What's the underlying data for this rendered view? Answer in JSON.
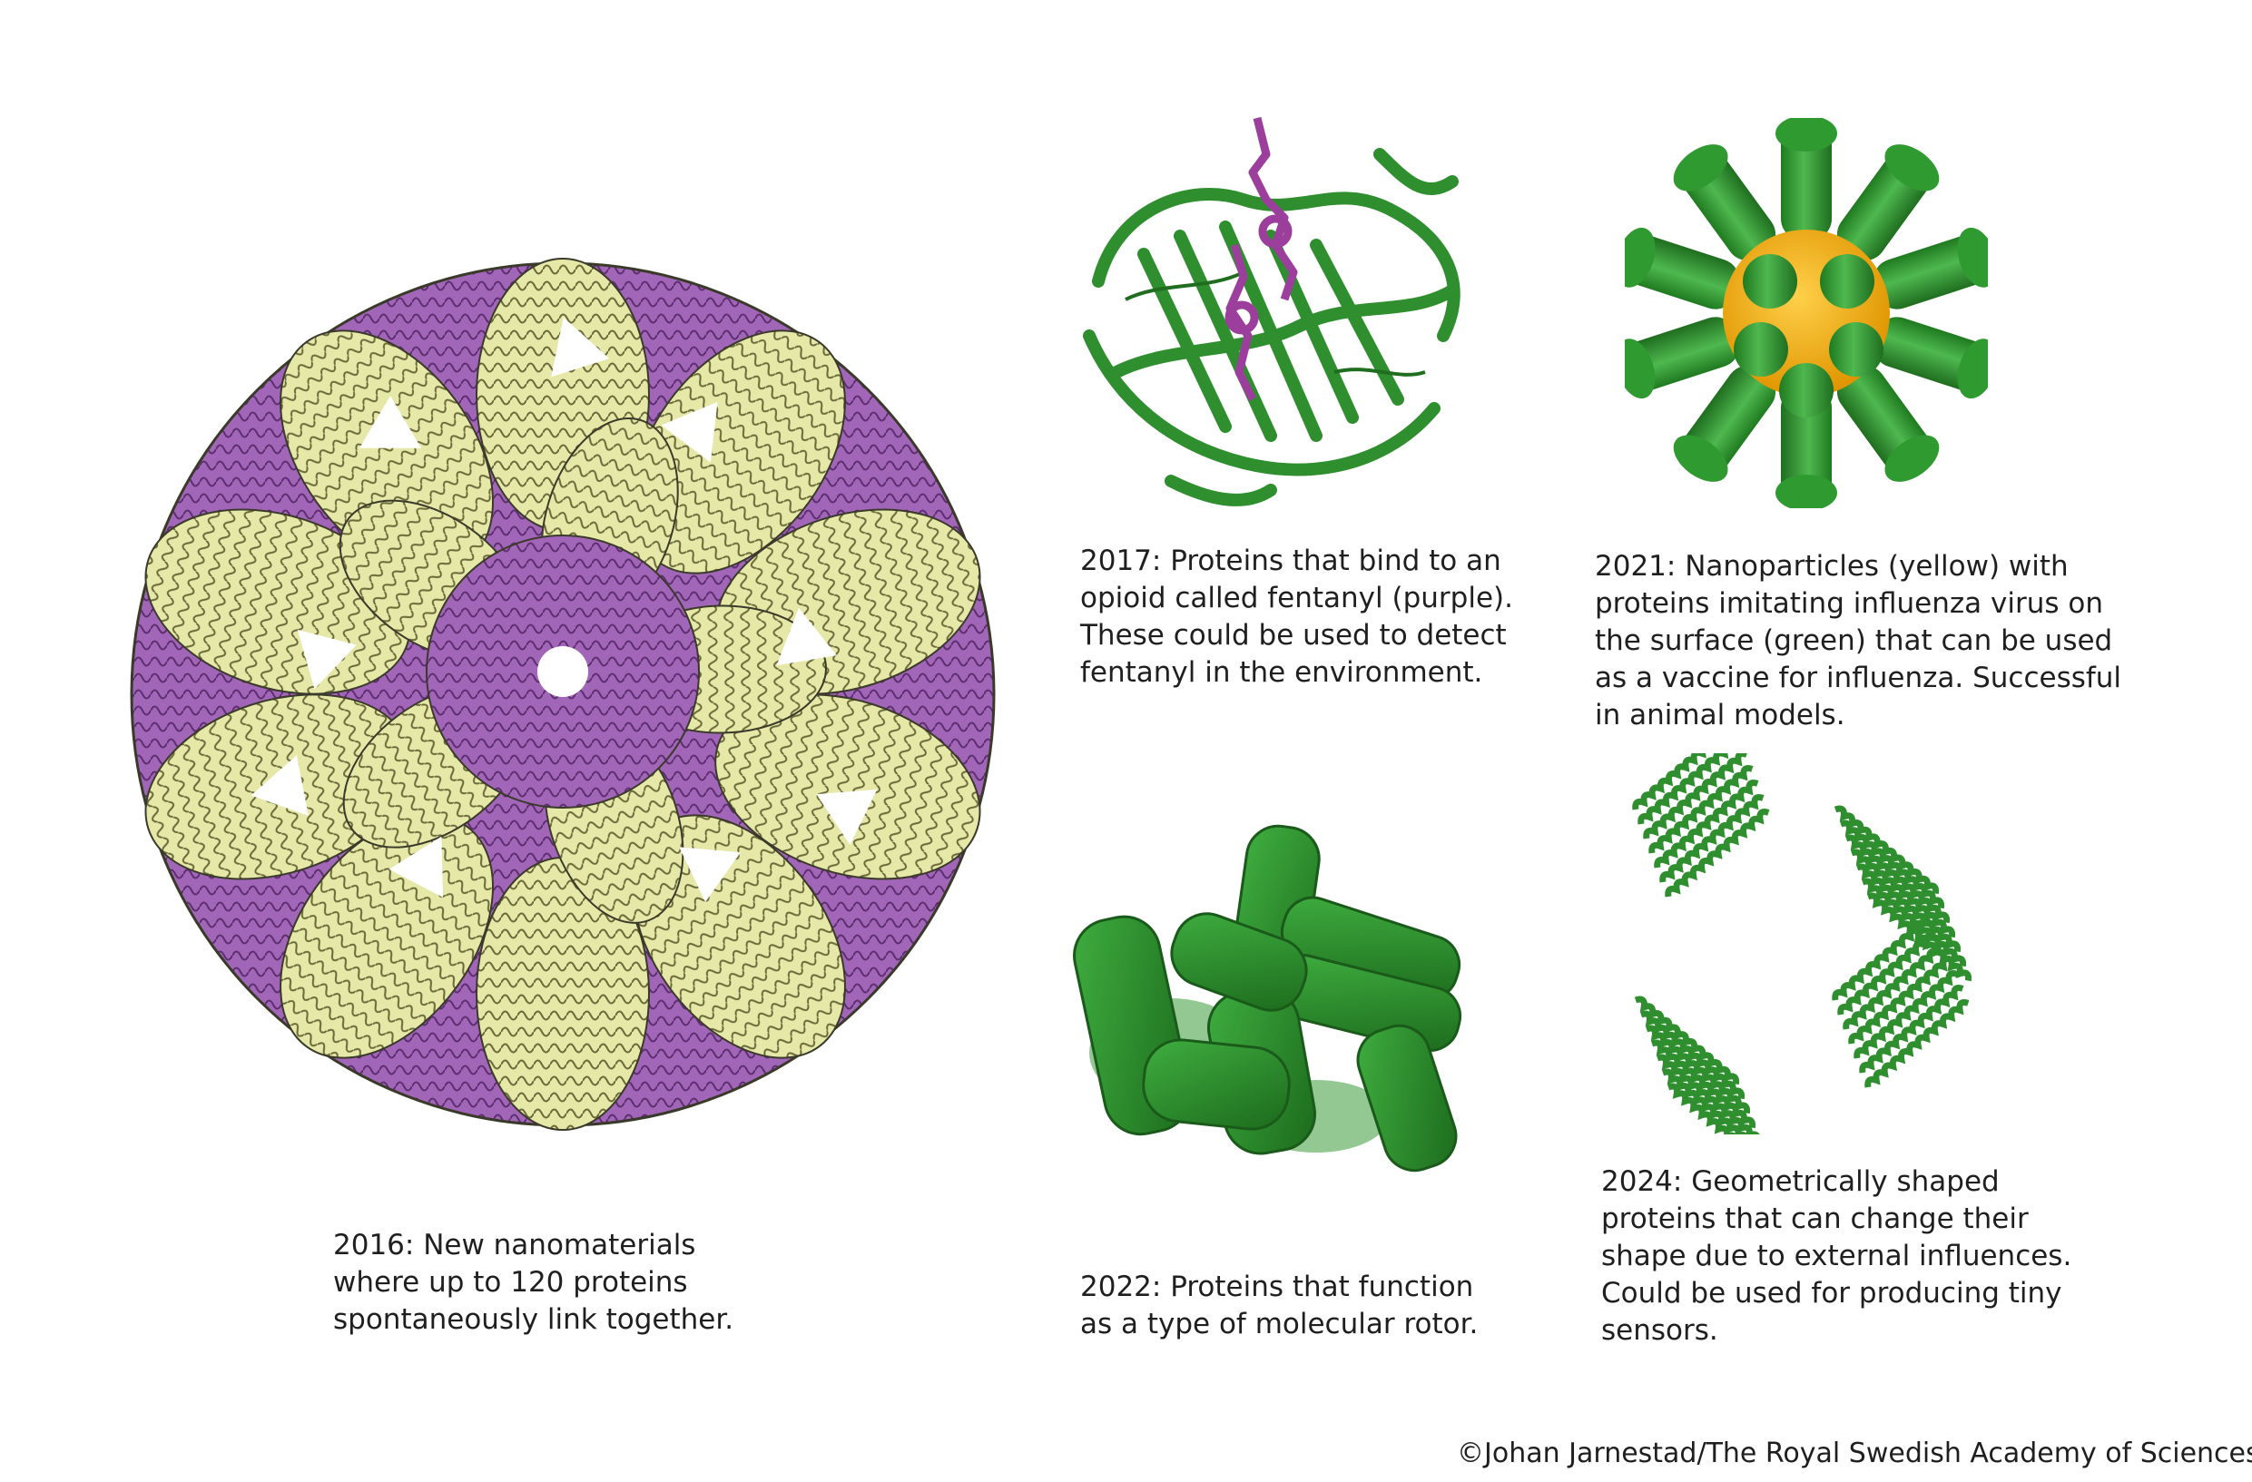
{
  "colors": {
    "green": "#2f8f2f",
    "dark_green": "#1f6e1f",
    "light_green": "#4fb84f",
    "purple": "#a266b8",
    "pale_yellow": "#e6e8a8",
    "yellow": "#f2b21c",
    "background": "#ffffff"
  },
  "panels": [
    {
      "id": "2016",
      "icon": "icosahedral-nanocage-ribbon-model",
      "caption_lines": [
        "2016: New nanomaterials",
        "where up to 120 proteins",
        "spontaneously link together."
      ]
    },
    {
      "id": "2017",
      "icon": "beta-barrel-protein-with-fentanyl",
      "caption_lines": [
        "2017: Proteins that bind to an",
        "opioid called fentanyl (purple).",
        "These could be used to detect",
        "fentanyl in the environment."
      ]
    },
    {
      "id": "2021",
      "icon": "nanoparticle-with-surface-spikes",
      "caption_lines": [
        "2021: Nanoparticles (yellow) with",
        "proteins imitating influenza virus on",
        "the surface (green) that can be used",
        "as a vaccine for influenza. Successful",
        "in animal models."
      ]
    },
    {
      "id": "2022",
      "icon": "molecular-rotor-surface-model",
      "caption_lines": [
        "2022: Proteins that function",
        "as a type of molecular rotor."
      ]
    },
    {
      "id": "2024",
      "icon": "square-helical-ring-ribbon-model",
      "caption_lines": [
        "2024: Geometrically shaped",
        "proteins that can change their",
        "shape due to external influences.",
        "Could be used for producing tiny",
        "sensors."
      ]
    }
  ],
  "credit": "©Johan Jarnestad/The Royal Swedish Academy of Sciences"
}
